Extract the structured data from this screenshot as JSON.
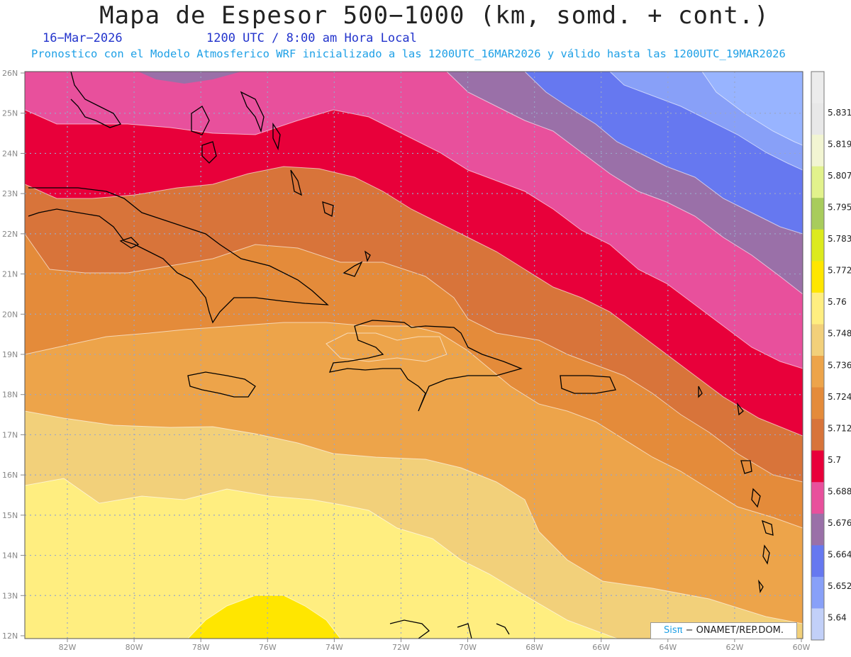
{
  "header": {
    "title": "Mapa de Espesor 500−1000 (km, somd. + cont.)",
    "date": "16−Mar−2026",
    "time": "1200 UTC / 8:00 am Hora Local",
    "subtitle": "Pronostico con el Modelo Atmosferico WRF inicializado a las 1200UTC_16MAR2026 y válido hasta las  1200UTC_19MAR2026"
  },
  "axes": {
    "lat_labels": [
      "26N",
      "25N",
      "24N",
      "23N",
      "22N",
      "21N",
      "20N",
      "19N",
      "18N",
      "17N",
      "16N",
      "15N",
      "14N",
      "13N",
      "12N"
    ],
    "lon_labels": [
      "82W",
      "80W",
      "78W",
      "76W",
      "74W",
      "72W",
      "70W",
      "68W",
      "66W",
      "64W",
      "62W",
      "60W"
    ]
  },
  "colorbar": {
    "labels": [
      "5.831",
      "5.819",
      "5.807",
      "5.795",
      "5.783",
      "5.772",
      "5.76",
      "5.748",
      "5.736",
      "5.724",
      "5.712",
      "5.7",
      "5.688",
      "5.676",
      "5.664",
      "5.652",
      "5.64"
    ],
    "colors": [
      "#e8e8e8",
      "#f2f5d2",
      "#e2f28c",
      "#a8cc5c",
      "#dcea1e",
      "#ffe600",
      "#ffee80",
      "#f2d07a",
      "#eda44a",
      "#e48b3a",
      "#d8743a",
      "#e8003a",
      "#e8509c",
      "#9a70a8",
      "#6678f0",
      "#88a0f8",
      "#c2d0f8"
    ]
  },
  "credit": {
    "sis": "Sisπ",
    "rest": "− ONAMET/REP.DOM."
  },
  "icons": {
    "logo": "sispi-logo"
  }
}
